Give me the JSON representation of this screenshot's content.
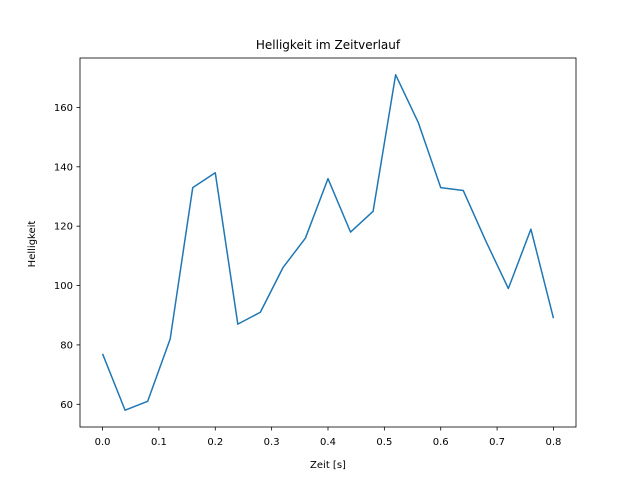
{
  "chart_data": {
    "type": "line",
    "title": "Helligkeit im Zeitverlauf",
    "xlabel": "Zeit [s]",
    "ylabel": "Helligkeit",
    "xlim": [
      -0.04,
      0.84
    ],
    "ylim": [
      52.35,
      176.65
    ],
    "grid": false,
    "legend": "none",
    "x_ticks": [
      0.0,
      0.1,
      0.2,
      0.3,
      0.4,
      0.5,
      0.6,
      0.7,
      0.8
    ],
    "x_tick_labels": [
      "0.0",
      "0.1",
      "0.2",
      "0.3",
      "0.4",
      "0.5",
      "0.6",
      "0.7",
      "0.8"
    ],
    "y_ticks": [
      60,
      80,
      100,
      120,
      140,
      160
    ],
    "y_tick_labels": [
      "60",
      "80",
      "100",
      "120",
      "140",
      "160"
    ],
    "series": [
      {
        "color": "#1f77b4",
        "x": [
          0.0,
          0.04,
          0.08,
          0.12,
          0.16,
          0.2,
          0.24,
          0.28,
          0.32,
          0.36,
          0.4,
          0.44,
          0.48,
          0.52,
          0.56,
          0.6,
          0.64,
          0.68,
          0.72,
          0.76,
          0.8
        ],
        "values": [
          77,
          58,
          61,
          82,
          133,
          138,
          87,
          91,
          106,
          116,
          136,
          118,
          125,
          171,
          155,
          133,
          132,
          115,
          99,
          119,
          89
        ]
      }
    ]
  }
}
